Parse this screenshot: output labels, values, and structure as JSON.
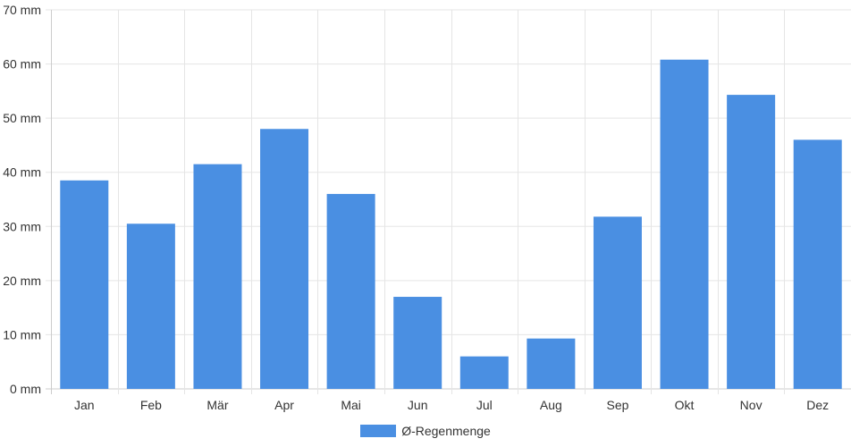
{
  "chart_data": {
    "type": "bar",
    "categories": [
      "Jan",
      "Feb",
      "Mär",
      "Apr",
      "Mai",
      "Jun",
      "Jul",
      "Aug",
      "Sep",
      "Okt",
      "Nov",
      "Dez"
    ],
    "series": [
      {
        "name": "Ø-Regenmenge",
        "values": [
          38.5,
          30.5,
          41.5,
          48,
          36,
          17,
          6,
          9.3,
          31.8,
          60.8,
          54.3,
          46
        ]
      }
    ],
    "y_ticks": [
      "0 mm",
      "10 mm",
      "20 mm",
      "30 mm",
      "40 mm",
      "50 mm",
      "60 mm",
      "70 mm"
    ],
    "ylim": [
      0,
      70
    ],
    "grid": true,
    "legend_position": "bottom-center",
    "colors": {
      "bar": "#4a8fe2",
      "grid": "#e5e5e5",
      "axis": "#cccccc",
      "text": "#333333"
    }
  }
}
